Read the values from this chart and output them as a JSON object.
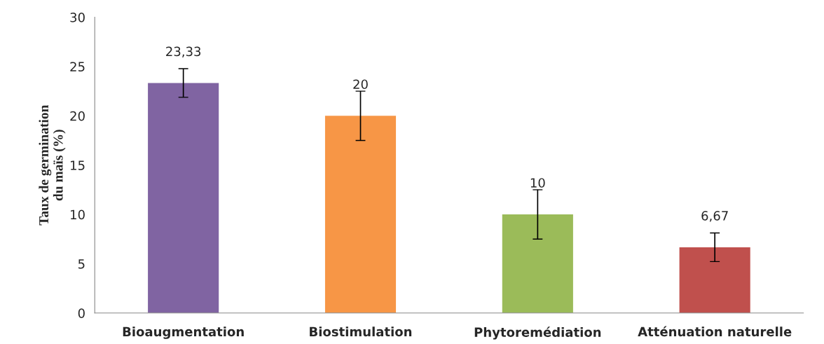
{
  "chart_data": {
    "type": "bar",
    "ylabel": "Taux de germination\ndu maïs (%)",
    "categories": [
      "Bioaugmentation",
      "Biostimulation",
      "Phytoremédiation",
      "Atténuation naturelle"
    ],
    "values": [
      23.33,
      20,
      10,
      6.67
    ],
    "colors": [
      "#8064a2",
      "#f79646",
      "#9bbb59",
      "#c0504d"
    ],
    "errors": [
      1.45,
      2.5,
      2.5,
      1.45
    ],
    "value_labels": [
      "23,33",
      "20",
      "10",
      "6,67"
    ],
    "ylim": [
      0,
      30
    ],
    "yticks": [
      0,
      5,
      10,
      15,
      20,
      25,
      30
    ],
    "grid": false,
    "legend": false
  }
}
